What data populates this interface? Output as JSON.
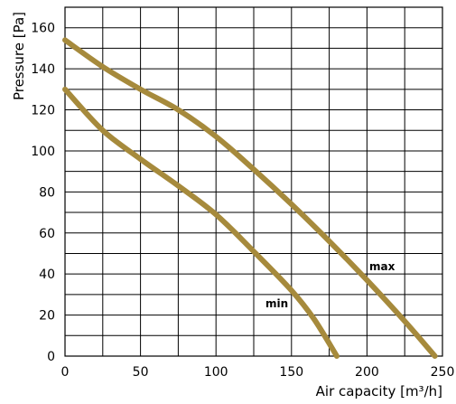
{
  "chart_data": {
    "type": "line",
    "title": "",
    "xlabel": "Air capacity [m³/h]",
    "ylabel": "Pressure [Pa]",
    "xlim": [
      0,
      250
    ],
    "ylim": [
      0,
      170
    ],
    "x_ticks": [
      0,
      50,
      100,
      150,
      200,
      250
    ],
    "y_ticks": [
      0,
      20,
      40,
      60,
      80,
      100,
      120,
      140,
      160
    ],
    "x_tick_labels": [
      "0",
      "50",
      "100",
      "150",
      "200",
      "250"
    ],
    "y_tick_labels": [
      "0",
      "20",
      "40",
      "60",
      "80",
      "100",
      "120",
      "140",
      "160"
    ],
    "x_grid_step": 25,
    "y_grid_step": 10,
    "grid": true,
    "legend": "inline labels",
    "line_color": "#a68a3c",
    "series": [
      {
        "name": "max",
        "x": [
          0,
          25,
          50,
          75,
          100,
          125,
          150,
          175,
          200,
          225,
          245
        ],
        "y": [
          154,
          141,
          130,
          120,
          107,
          91,
          74,
          56,
          37,
          17,
          0
        ]
      },
      {
        "name": "min",
        "x": [
          0,
          25,
          50,
          75,
          100,
          125,
          150,
          165,
          180
        ],
        "y": [
          130,
          110,
          96,
          83,
          69,
          51,
          32,
          18,
          0
        ]
      }
    ]
  }
}
